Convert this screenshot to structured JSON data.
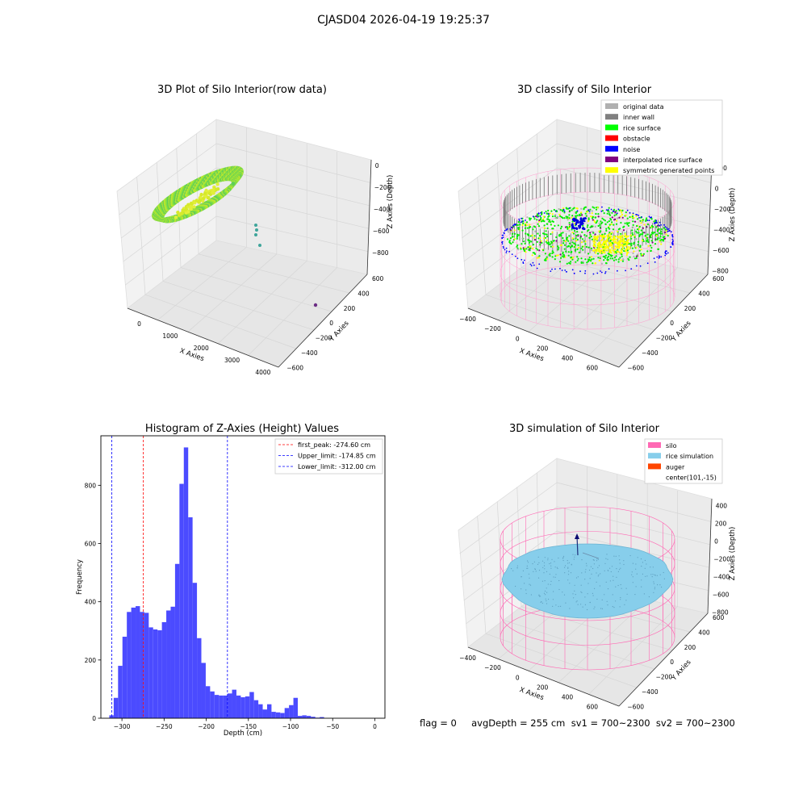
{
  "figure": {
    "suptitle": "CJASD04 2026-04-19 19:25:37",
    "footer": "flag = 0     avgDepth = 255 cm  sv1 = 700~2300  sv2 = 700~2300"
  },
  "panels": {
    "raw": {
      "title": "3D Plot of Silo Interior(row data)",
      "xlabel": "X Axies",
      "ylabel": "Y Axies",
      "zlabel": "Z Axies (Depth)",
      "xticks": [
        "0",
        "1000",
        "2000",
        "3000",
        "4000"
      ],
      "yticks": [
        "600",
        "400",
        "200",
        "0",
        "−200",
        "−400",
        "−600"
      ],
      "zticks": [
        "0",
        "−200",
        "−400",
        "−600",
        "−800"
      ]
    },
    "classify": {
      "title": "3D classify of Silo Interior",
      "xlabel": "X Axies",
      "ylabel": "Y Axies",
      "zlabel": "Z Axies (Depth)",
      "xticks": [
        "−400",
        "−200",
        "0",
        "200",
        "400",
        "600"
      ],
      "yticks": [
        "600",
        "400",
        "200",
        "0",
        "−200",
        "−400",
        "−600"
      ],
      "zticks": [
        "200",
        "0",
        "−200",
        "−400",
        "−600",
        "−800"
      ],
      "z_top_tick": "00",
      "legend": [
        {
          "label": "original data",
          "color": "#b0b0b0"
        },
        {
          "label": "inner wall",
          "color": "#808080"
        },
        {
          "label": "rice surface",
          "color": "#00ff00"
        },
        {
          "label": "obstacle",
          "color": "#ff0000"
        },
        {
          "label": "noise",
          "color": "#0000ff"
        },
        {
          "label": "interpolated rice surface",
          "color": "#800080"
        },
        {
          "label": "symmetric generated points",
          "color": "#ffff00"
        }
      ]
    },
    "simulation": {
      "title": "3D simulation of Silo Interior",
      "xlabel": "X Axies",
      "ylabel": "Y Axies",
      "zlabel": "Z Axies (Depth)",
      "xticks": [
        "−400",
        "−200",
        "0",
        "200",
        "400",
        "600"
      ],
      "yticks": [
        "600",
        "400",
        "200",
        "0",
        "−200",
        "−400",
        "−600"
      ],
      "zticks": [
        "400",
        "200",
        "0",
        "−200",
        "−400",
        "−600",
        "−800"
      ],
      "legend": [
        {
          "label": "silo",
          "color": "#ff69b4"
        },
        {
          "label": "rice simulation",
          "color": "#87ceeb"
        },
        {
          "label": "auger",
          "color": "#ff4500"
        },
        {
          "label": "center(101,-15)",
          "color": "none"
        }
      ]
    }
  },
  "chart_data": [
    {
      "type": "scatter",
      "title": "3D Plot of Silo Interior(row data)",
      "xlabel": "X Axies",
      "ylabel": "Y Axies",
      "zlabel": "Z Axies (Depth)",
      "xlim": [
        -500,
        4200
      ],
      "ylim": [
        -650,
        650
      ],
      "zlim": [
        -950,
        50
      ]
    },
    {
      "type": "scatter",
      "title": "3D classify of Silo Interior",
      "xlabel": "X Axies",
      "ylabel": "Y Axies",
      "zlabel": "Z Axies (Depth)",
      "xlim": [
        -500,
        700
      ],
      "ylim": [
        -650,
        650
      ],
      "zlim": [
        -900,
        300
      ]
    },
    {
      "type": "bar",
      "title": "Histogram of Z-Axies (Height) Values",
      "xlabel": "Depth (cm)",
      "ylabel": "Frequency",
      "xlim": [
        -325,
        12
      ],
      "ylim": [
        0,
        970
      ],
      "xticks": [
        -300,
        -250,
        -200,
        -150,
        -100,
        -50,
        0
      ],
      "yticks": [
        0,
        200,
        400,
        600,
        800
      ],
      "bin_start": -315,
      "bin_width": 5.2,
      "values": [
        10,
        70,
        180,
        280,
        365,
        380,
        385,
        365,
        362,
        312,
        305,
        302,
        330,
        370,
        383,
        530,
        805,
        930,
        690,
        465,
        275,
        190,
        110,
        92,
        80,
        78,
        78,
        85,
        98,
        78,
        72,
        75,
        90,
        62,
        48,
        30,
        48,
        22,
        20,
        18,
        35,
        45,
        70,
        8,
        10,
        8,
        5,
        2,
        4
      ],
      "lines": [
        {
          "label": "first_peak: -274.60 cm",
          "x": -274.6,
          "color": "#ff0000"
        },
        {
          "label": "Upper_limit: -174.85 cm",
          "x": -174.85,
          "color": "#0000ff"
        },
        {
          "label": "Lower_limit: -312.00 cm",
          "x": -312.0,
          "color": "#0000ff"
        }
      ],
      "bar_color": "#4b4bff"
    },
    {
      "type": "scatter",
      "title": "3D simulation of Silo Interior",
      "xlabel": "X Axies",
      "ylabel": "Y Axies",
      "zlabel": "Z Axies (Depth)",
      "xlim": [
        -500,
        700
      ],
      "ylim": [
        -650,
        650
      ],
      "zlim": [
        -900,
        500
      ]
    }
  ]
}
